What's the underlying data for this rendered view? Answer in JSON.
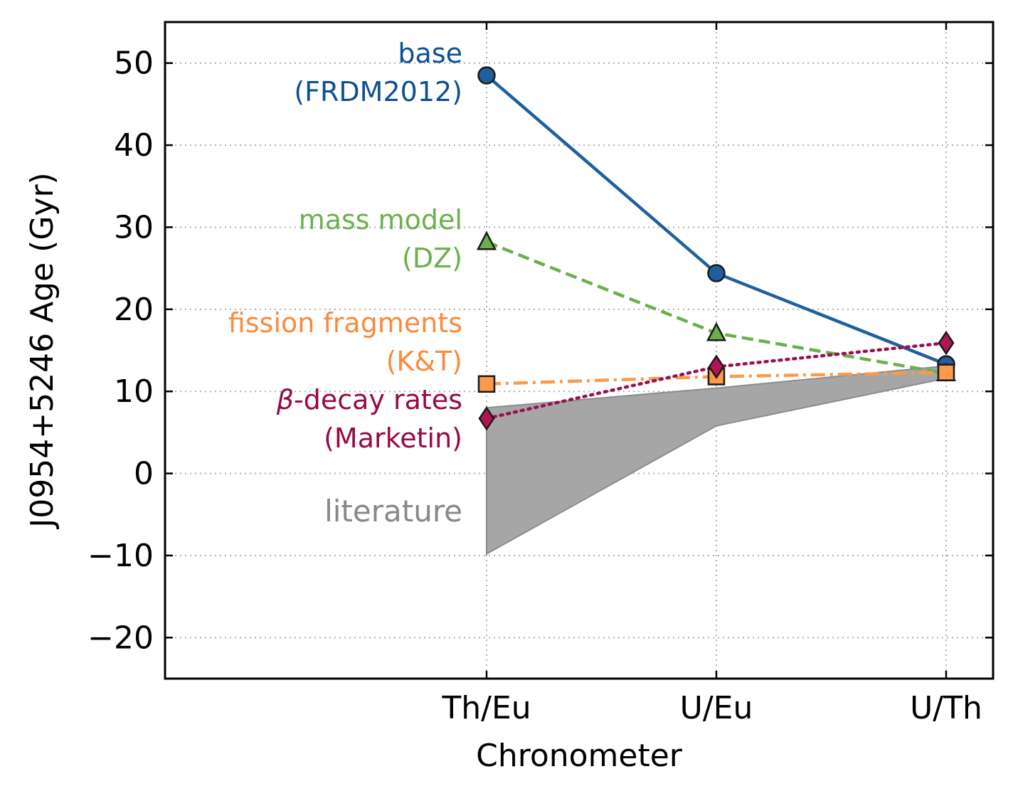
{
  "chart_data": {
    "type": "line",
    "title": "",
    "xlabel": "Chronometer",
    "ylabel": "J0954+5246 Age (Gyr)",
    "categories": [
      "Th/Eu",
      "U/Eu",
      "U/Th"
    ],
    "ylim": [
      -25,
      55
    ],
    "yticks": [
      -20,
      -10,
      0,
      10,
      20,
      30,
      40,
      50
    ],
    "ytick_labels": [
      "−20",
      "−10",
      "0",
      "10",
      "20",
      "30",
      "40",
      "50"
    ],
    "grid": true,
    "series": [
      {
        "name": "base (FRDM2012)",
        "label_lines": [
          "base",
          "(FRDM2012)"
        ],
        "values": [
          48.5,
          24.4,
          13.3
        ],
        "color": "#1f5fa0",
        "marker_color": "#1f5fa0",
        "label_color": "#0d4f94",
        "marker": "circle",
        "linestyle": "solid"
      },
      {
        "name": "mass model (DZ)",
        "label_lines": [
          "mass model",
          "(DZ)"
        ],
        "values": [
          28.2,
          17.1,
          12.2
        ],
        "color": "#6ab04c",
        "marker_color": "#6ab04c",
        "label_color": "#6ab04c",
        "marker": "triangle",
        "linestyle": "dashed"
      },
      {
        "name": "fission fragments (K&T)",
        "label_lines": [
          "fission fragments",
          "(K&T)"
        ],
        "values": [
          10.9,
          11.8,
          12.3
        ],
        "color": "#fb9a4a",
        "marker_color": "#fb9a4a",
        "label_color": "#f98b3c",
        "marker": "square",
        "linestyle": "dashdot"
      },
      {
        "name": "β-decay rates (Marketin)",
        "label_lines": [
          "β-decay rates",
          "(Marketin)"
        ],
        "values": [
          6.7,
          13.0,
          15.9
        ],
        "color": "#99104e",
        "marker_color": "#b01555",
        "label_color": "#960a48",
        "marker": "diamond",
        "linestyle": "dotted"
      }
    ],
    "band": {
      "name": "literature",
      "label": "literature",
      "lower": [
        -9.8,
        5.8,
        11.6
      ],
      "upper": [
        8.0,
        10.4,
        13.1
      ],
      "color": "#a6a6a6",
      "edge_color": "#8c8c8c",
      "label_color": "#888888"
    }
  }
}
